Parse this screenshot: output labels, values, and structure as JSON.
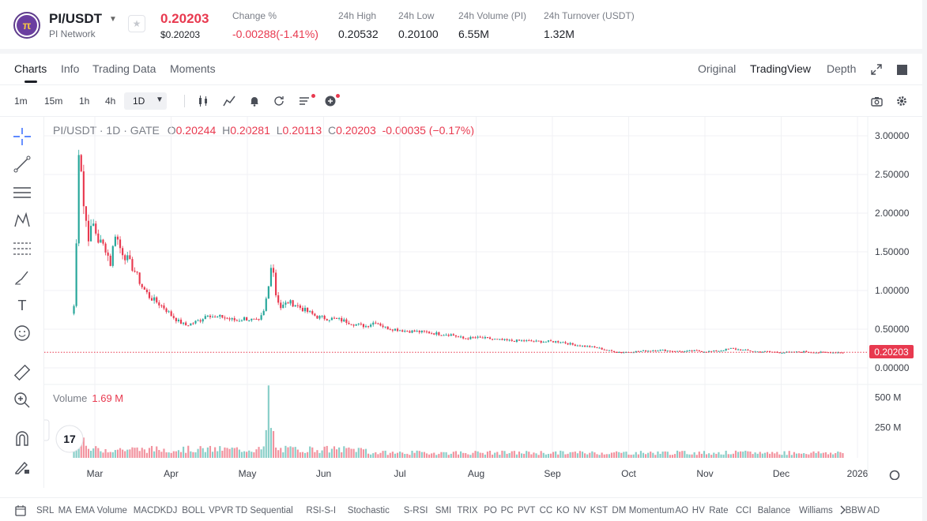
{
  "ticker": {
    "pair": "PI/USDT",
    "project": "PI Network",
    "logo_text": "π",
    "price": "0.20203",
    "price_usd": "$0.20203",
    "change_label": "Change %",
    "change_value": "-0.00288(-1.41%)",
    "high_label": "24h High",
    "high_value": "0.20532",
    "low_label": "24h Low",
    "low_value": "0.20100",
    "vol_label": "24h Volume (PI)",
    "vol_value": "6.55M",
    "turnover_label": "24h Turnover (USDT)",
    "turnover_value": "1.32M"
  },
  "tabs": [
    "Charts",
    "Info",
    "Trading Data",
    "Moments"
  ],
  "view_options": [
    "Original",
    "TradingView",
    "Depth"
  ],
  "timeframes": [
    "1m",
    "15m",
    "1h",
    "4h",
    "1D"
  ],
  "legend": {
    "title": "PI/USDT · 1D · GATE",
    "o_label": "O",
    "o_value": "0.20244",
    "h_label": "H",
    "h_value": "0.20281",
    "l_label": "L",
    "l_value": "0.20113",
    "c_label": "C",
    "c_value": "0.20203",
    "change": "-0.00035 (−0.17%)"
  },
  "volume_legend": {
    "label": "Volume",
    "value": "1.69 M"
  },
  "price_tag": "0.20203",
  "indicators": [
    "SRL",
    "MA",
    "EMA",
    "Volume",
    "MACD",
    "KDJ",
    "BOLL",
    "VPVR",
    "TD Sequential",
    "RSI-S-I",
    "Stochastic",
    "S-RSI",
    "SMI",
    "TRIX",
    "PO",
    "PC",
    "PVT",
    "CC",
    "KO",
    "NV",
    "KST",
    "DM",
    "Momentum",
    "AO",
    "HV",
    "Rate",
    "CCI",
    "Balance",
    "Williams",
    "BBW",
    "AD"
  ],
  "colors": {
    "up": "#26a69a",
    "down": "#e8394f",
    "accent": "#1c1f26"
  },
  "chart_data": {
    "type": "candlestick",
    "title": "PI/USDT · 1D · GATE",
    "y_axis_ticks": [
      "3.00000",
      "2.50000",
      "2.00000",
      "1.50000",
      "1.00000",
      "0.50000",
      "0.00000"
    ],
    "ylim": [
      0,
      3.0
    ],
    "x_axis_ticks": [
      "Mar",
      "Apr",
      "May",
      "Jun",
      "Jul",
      "Aug",
      "Sep",
      "Oct",
      "Nov",
      "Dec",
      "2026"
    ],
    "volume_axis_ticks": [
      "500 M",
      "250 M"
    ],
    "last_price": 0.20203,
    "close_series": [
      [
        0,
        0.8
      ],
      [
        1,
        1.6
      ],
      [
        2,
        2.85
      ],
      [
        3,
        2.6
      ],
      [
        4,
        2.1
      ],
      [
        5,
        1.9
      ],
      [
        6,
        1.7
      ],
      [
        8,
        1.85
      ],
      [
        10,
        1.65
      ],
      [
        13,
        1.55
      ],
      [
        15,
        1.35
      ],
      [
        17,
        1.75
      ],
      [
        19,
        1.55
      ],
      [
        22,
        1.4
      ],
      [
        25,
        1.25
      ],
      [
        28,
        1.05
      ],
      [
        31,
        0.92
      ],
      [
        34,
        0.85
      ],
      [
        37,
        0.78
      ],
      [
        40,
        0.68
      ],
      [
        43,
        0.6
      ],
      [
        46,
        0.55
      ],
      [
        49,
        0.58
      ],
      [
        52,
        0.62
      ],
      [
        55,
        0.7
      ],
      [
        58,
        0.65
      ],
      [
        61,
        0.66
      ],
      [
        64,
        0.63
      ],
      [
        67,
        0.61
      ],
      [
        70,
        0.64
      ],
      [
        73,
        0.62
      ],
      [
        76,
        0.6
      ],
      [
        78,
        0.72
      ],
      [
        80,
        1.05
      ],
      [
        81,
        1.35
      ],
      [
        82,
        1.25
      ],
      [
        83,
        0.95
      ],
      [
        85,
        0.78
      ],
      [
        88,
        0.85
      ],
      [
        91,
        0.82
      ],
      [
        94,
        0.76
      ],
      [
        97,
        0.71
      ],
      [
        100,
        0.66
      ],
      [
        104,
        0.64
      ],
      [
        108,
        0.63
      ],
      [
        112,
        0.6
      ],
      [
        116,
        0.56
      ],
      [
        120,
        0.54
      ],
      [
        124,
        0.6
      ],
      [
        128,
        0.52
      ],
      [
        132,
        0.5
      ],
      [
        136,
        0.48
      ],
      [
        140,
        0.47
      ],
      [
        145,
        0.46
      ],
      [
        150,
        0.44
      ],
      [
        155,
        0.43
      ],
      [
        160,
        0.38
      ],
      [
        165,
        0.39
      ],
      [
        170,
        0.38
      ],
      [
        175,
        0.36
      ],
      [
        180,
        0.35
      ],
      [
        185,
        0.35
      ],
      [
        190,
        0.34
      ],
      [
        195,
        0.34
      ],
      [
        200,
        0.34
      ],
      [
        205,
        0.3
      ],
      [
        210,
        0.28
      ],
      [
        215,
        0.26
      ],
      [
        220,
        0.22
      ],
      [
        225,
        0.2
      ],
      [
        230,
        0.21
      ],
      [
        235,
        0.22
      ],
      [
        240,
        0.23
      ],
      [
        245,
        0.22
      ],
      [
        250,
        0.21
      ],
      [
        255,
        0.22
      ],
      [
        260,
        0.21
      ],
      [
        265,
        0.22
      ],
      [
        270,
        0.25
      ],
      [
        275,
        0.23
      ],
      [
        280,
        0.21
      ],
      [
        285,
        0.21
      ],
      [
        290,
        0.2
      ],
      [
        295,
        0.2
      ],
      [
        300,
        0.21
      ],
      [
        305,
        0.2
      ],
      [
        310,
        0.2
      ],
      [
        316,
        0.2
      ]
    ]
  }
}
